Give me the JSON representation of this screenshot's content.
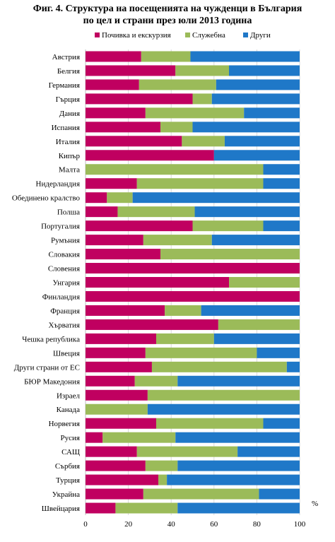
{
  "chart_data": {
    "type": "bar",
    "orientation": "horizontal",
    "stacked": true,
    "title": "Фиг. 4. Структура на посещенията на чужденци в България по цел и страни през юли 2013 година",
    "title_lines": [
      "Фиг. 4. Структура на посещенията на чужденци в България",
      "по цел и страни през юли 2013 година"
    ],
    "unit_label": "%",
    "xlim": [
      0,
      100
    ],
    "xticks": [
      "0",
      "20",
      "40",
      "60",
      "80",
      "100"
    ],
    "grid": true,
    "legend_position": "top",
    "categories": [
      "Австрия",
      "Белгия",
      "Германия",
      "Гърция",
      "Дания",
      "Испания",
      "Италия",
      "Кипър",
      "Малта",
      "Нидерландия",
      "Обединено кралство",
      "Полша",
      "Португалия",
      "Румъния",
      "Словакия",
      "Словения",
      "Унгария",
      "Финландия",
      "Франция",
      "Хърватия",
      "Чешка република",
      "Швеция",
      "Други страни от ЕС",
      "БЮР Македония",
      "Израел",
      "Канада",
      "Норвегия",
      "Русия",
      "САЩ",
      "Сърбия",
      "Турция",
      "Украйна",
      "Швейцария"
    ],
    "series": [
      {
        "name": "Почивка и екскурзия",
        "color": "#c00060",
        "values": [
          26,
          42,
          25,
          50,
          28,
          35,
          45,
          60,
          0,
          24,
          10,
          15,
          50,
          27,
          35,
          100,
          67,
          100,
          37,
          62,
          33,
          28,
          31,
          23,
          29,
          0,
          33,
          8,
          24,
          28,
          34,
          27,
          14
        ]
      },
      {
        "name": "Служебна",
        "color": "#9bbb59",
        "values": [
          23,
          25,
          36,
          9,
          46,
          15,
          20,
          0,
          83,
          59,
          12,
          36,
          33,
          32,
          65,
          0,
          33,
          0,
          17,
          38,
          27,
          52,
          63,
          20,
          71,
          29,
          50,
          34,
          47,
          15,
          4,
          54,
          29
        ]
      },
      {
        "name": "Други",
        "color": "#1f78c8",
        "values": [
          51,
          33,
          39,
          41,
          26,
          50,
          35,
          40,
          17,
          17,
          78,
          49,
          17,
          41,
          0,
          0,
          0,
          0,
          46,
          0,
          40,
          20,
          6,
          57,
          0,
          71,
          17,
          58,
          29,
          57,
          62,
          19,
          57
        ]
      }
    ]
  }
}
